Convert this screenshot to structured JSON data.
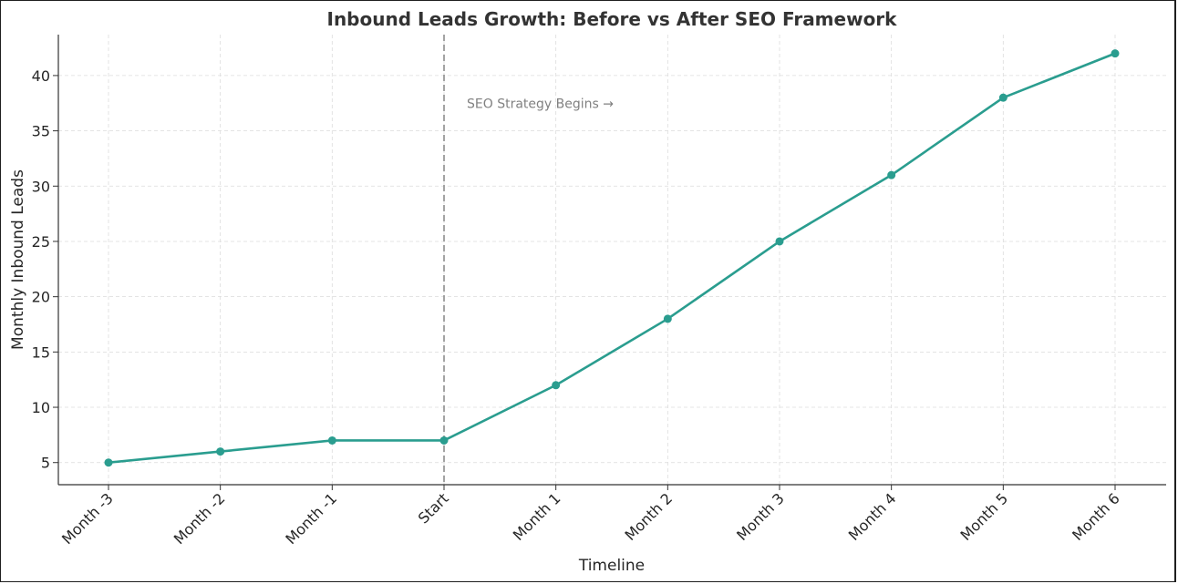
{
  "chart_data": {
    "type": "line",
    "title": "Inbound Leads Growth: Before vs After SEO Framework",
    "xlabel": "Timeline",
    "ylabel": "Monthly Inbound Leads",
    "categories": [
      "Month -3",
      "Month -2",
      "Month -1",
      "Start",
      "Month 1",
      "Month 2",
      "Month 3",
      "Month 4",
      "Month 5",
      "Month 6"
    ],
    "series": [
      {
        "name": "Monthly Inbound Leads",
        "values": [
          5,
          6,
          7,
          7,
          12,
          18,
          25,
          31,
          38,
          42
        ]
      }
    ],
    "ylim": [
      3,
      43.7
    ],
    "yticks": [
      5,
      10,
      15,
      20,
      25,
      30,
      35,
      40
    ],
    "grid": true,
    "line_color": "#2a9d8f",
    "divider": {
      "category": "Start",
      "style": "dashed",
      "color": "#999999"
    },
    "annotation": {
      "text": "SEO Strategy Begins →",
      "category": "Start",
      "y": 37.5
    }
  }
}
